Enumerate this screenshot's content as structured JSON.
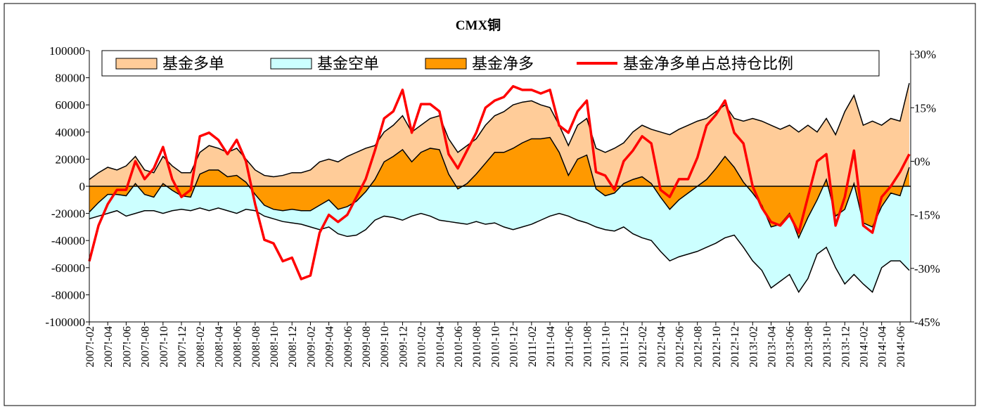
{
  "chart_data": {
    "type": "area-line",
    "title": "CMX铜",
    "categories": [
      "2007!-02",
      null,
      "2007!-04",
      null,
      "2007!-06",
      null,
      "2007!-08",
      null,
      "2007!-10",
      null,
      "2007!-12",
      null,
      "2008!-02",
      null,
      "2008!-04",
      null,
      "2008!-06",
      null,
      "2008!-08",
      null,
      "2008!-10",
      null,
      "2008!-12",
      null,
      "2009!-02",
      null,
      "2009!-04",
      null,
      "2009!-06",
      null,
      "2009!-08",
      null,
      "2009!-10",
      null,
      "2009!-12",
      null,
      "2010!-02",
      null,
      "2010!-04",
      null,
      "2010!-06",
      null,
      "2010!-08",
      null,
      "2010!-10",
      null,
      "2010!-12",
      null,
      "2011!-02",
      null,
      "2011!-04",
      null,
      "2011!-06",
      null,
      "2011!-08",
      null,
      "2011!-10",
      null,
      "2011!-12",
      null,
      "2012!-02",
      null,
      "2012!-04",
      null,
      "2012!-06",
      null,
      "2012!-08",
      null,
      "2012!-10",
      null,
      "2012!-12",
      null,
      "2013!-02",
      null,
      "2013!-04",
      null,
      "2013!-06",
      null,
      "2013!-08",
      null,
      "2013!-10",
      null,
      "2013!-12",
      null,
      "2014!-02",
      null,
      "2014!-04",
      null,
      "2014!-06",
      null
    ],
    "series": [
      {
        "name": "基金多单",
        "color": "#FFCC99",
        "kind": "area",
        "values": [
          5000,
          10000,
          14000,
          12000,
          15000,
          22000,
          12000,
          10000,
          22000,
          15000,
          10000,
          10000,
          25000,
          30000,
          28000,
          25000,
          28000,
          20000,
          12000,
          8000,
          7000,
          8000,
          10000,
          10000,
          12000,
          18000,
          20000,
          18000,
          22000,
          25000,
          28000,
          30000,
          40000,
          45000,
          52000,
          40000,
          45000,
          50000,
          52000,
          35000,
          25000,
          30000,
          35000,
          45000,
          52000,
          55000,
          60000,
          62000,
          63000,
          60000,
          58000,
          45000,
          30000,
          45000,
          50000,
          28000,
          25000,
          28000,
          32000,
          40000,
          45000,
          42000,
          40000,
          38000,
          42000,
          45000,
          48000,
          50000,
          55000,
          60000,
          50000,
          48000,
          50000,
          48000,
          45000,
          42000,
          45000,
          40000,
          45000,
          40000,
          50000,
          38000,
          55000,
          67000,
          45000,
          48000,
          45000,
          50000,
          48000,
          76000
        ]
      },
      {
        "name": "基金空单",
        "color": "#CCFFFF",
        "kind": "area",
        "values": [
          -24000,
          -22000,
          -20000,
          -18000,
          -22000,
          -20000,
          -18000,
          -18000,
          -20000,
          -18000,
          -17000,
          -18000,
          -16000,
          -18000,
          -16000,
          -18000,
          -20000,
          -17000,
          -18000,
          -22000,
          -24000,
          -26000,
          -27000,
          -28000,
          -30000,
          -32000,
          -30000,
          -35000,
          -37000,
          -36000,
          -32000,
          -25000,
          -22000,
          -23000,
          -25000,
          -22000,
          -20000,
          -22000,
          -25000,
          -26000,
          -27000,
          -28000,
          -26000,
          -28000,
          -27000,
          -30000,
          -32000,
          -30000,
          -28000,
          -25000,
          -22000,
          -20000,
          -22000,
          -25000,
          -27000,
          -30000,
          -32000,
          -33000,
          -30000,
          -35000,
          -38000,
          -40000,
          -48000,
          -55000,
          -52000,
          -50000,
          -48000,
          -45000,
          -42000,
          -38000,
          -36000,
          -45000,
          -55000,
          -62000,
          -75000,
          -70000,
          -65000,
          -78000,
          -68000,
          -50000,
          -45000,
          -60000,
          -72000,
          -65000,
          -72000,
          -78000,
          -60000,
          -55000,
          -55000,
          -62000
        ]
      },
      {
        "name": "基金净多",
        "color": "#FF9900",
        "kind": "area",
        "values": [
          -19000,
          -12000,
          -6000,
          -6000,
          -7000,
          2000,
          -6000,
          -8000,
          2000,
          -3000,
          -7000,
          -8000,
          9000,
          12000,
          12000,
          7000,
          8000,
          3000,
          -6000,
          -14000,
          -17000,
          -18000,
          -17000,
          -18000,
          -18000,
          -14000,
          -10000,
          -17000,
          -15000,
          -11000,
          -4000,
          5000,
          18000,
          22000,
          27000,
          18000,
          25000,
          28000,
          27000,
          9000,
          -2000,
          2000,
          9000,
          17000,
          25000,
          25000,
          28000,
          32000,
          35000,
          35000,
          36000,
          25000,
          8000,
          20000,
          23000,
          -2000,
          -7000,
          -5000,
          2000,
          5000,
          7000,
          2000,
          -8000,
          -17000,
          -10000,
          -5000,
          0,
          5000,
          13000,
          22000,
          14000,
          3000,
          -5000,
          -14000,
          -30000,
          -28000,
          -20000,
          -38000,
          -23000,
          -10000,
          5000,
          -22000,
          -17000,
          2000,
          -27000,
          -30000,
          -15000,
          -5000,
          -7000,
          14000
        ]
      },
      {
        "name": "基金净多单占总持仓比例",
        "color": "#FF0000",
        "kind": "line",
        "axis": "y2",
        "values": [
          -28,
          -18,
          -12,
          -8,
          -8,
          0,
          -5,
          -2,
          4,
          -5,
          -10,
          -8,
          7,
          8,
          6,
          2,
          6,
          0,
          -12,
          -22,
          -23,
          -28,
          -27,
          -33,
          -32,
          -20,
          -15,
          -17,
          -15,
          -10,
          -5,
          3,
          12,
          14,
          20,
          8,
          16,
          16,
          14,
          2,
          -2,
          3,
          8,
          15,
          17,
          18,
          21,
          20,
          20,
          19,
          20,
          10,
          8,
          14,
          17,
          -3,
          -4,
          -8,
          0,
          3,
          7,
          5,
          -8,
          -10,
          -5,
          -5,
          1,
          10,
          13,
          17,
          8,
          5,
          -7,
          -13,
          -17,
          -18,
          -15,
          -20,
          -10,
          0,
          2,
          -18,
          -10,
          3,
          -18,
          -20,
          -10,
          -7,
          -3,
          2
        ]
      }
    ],
    "ylim": [
      -100000,
      100000
    ],
    "yticks": [
      -100000,
      -80000,
      -60000,
      -40000,
      -20000,
      0,
      20000,
      40000,
      60000,
      80000,
      100000
    ],
    "y2lim": [
      -45,
      31
    ],
    "y2ticks": [
      {
        "value": -45,
        "label": "-45%"
      },
      {
        "value": -30,
        "label": "-30%"
      },
      {
        "value": -15,
        "label": "-15%"
      },
      {
        "value": 0,
        "label": "0%"
      },
      {
        "value": 15,
        "label": "15%"
      },
      {
        "value": 30,
        "label": "30%"
      }
    ],
    "legend": "top"
  }
}
